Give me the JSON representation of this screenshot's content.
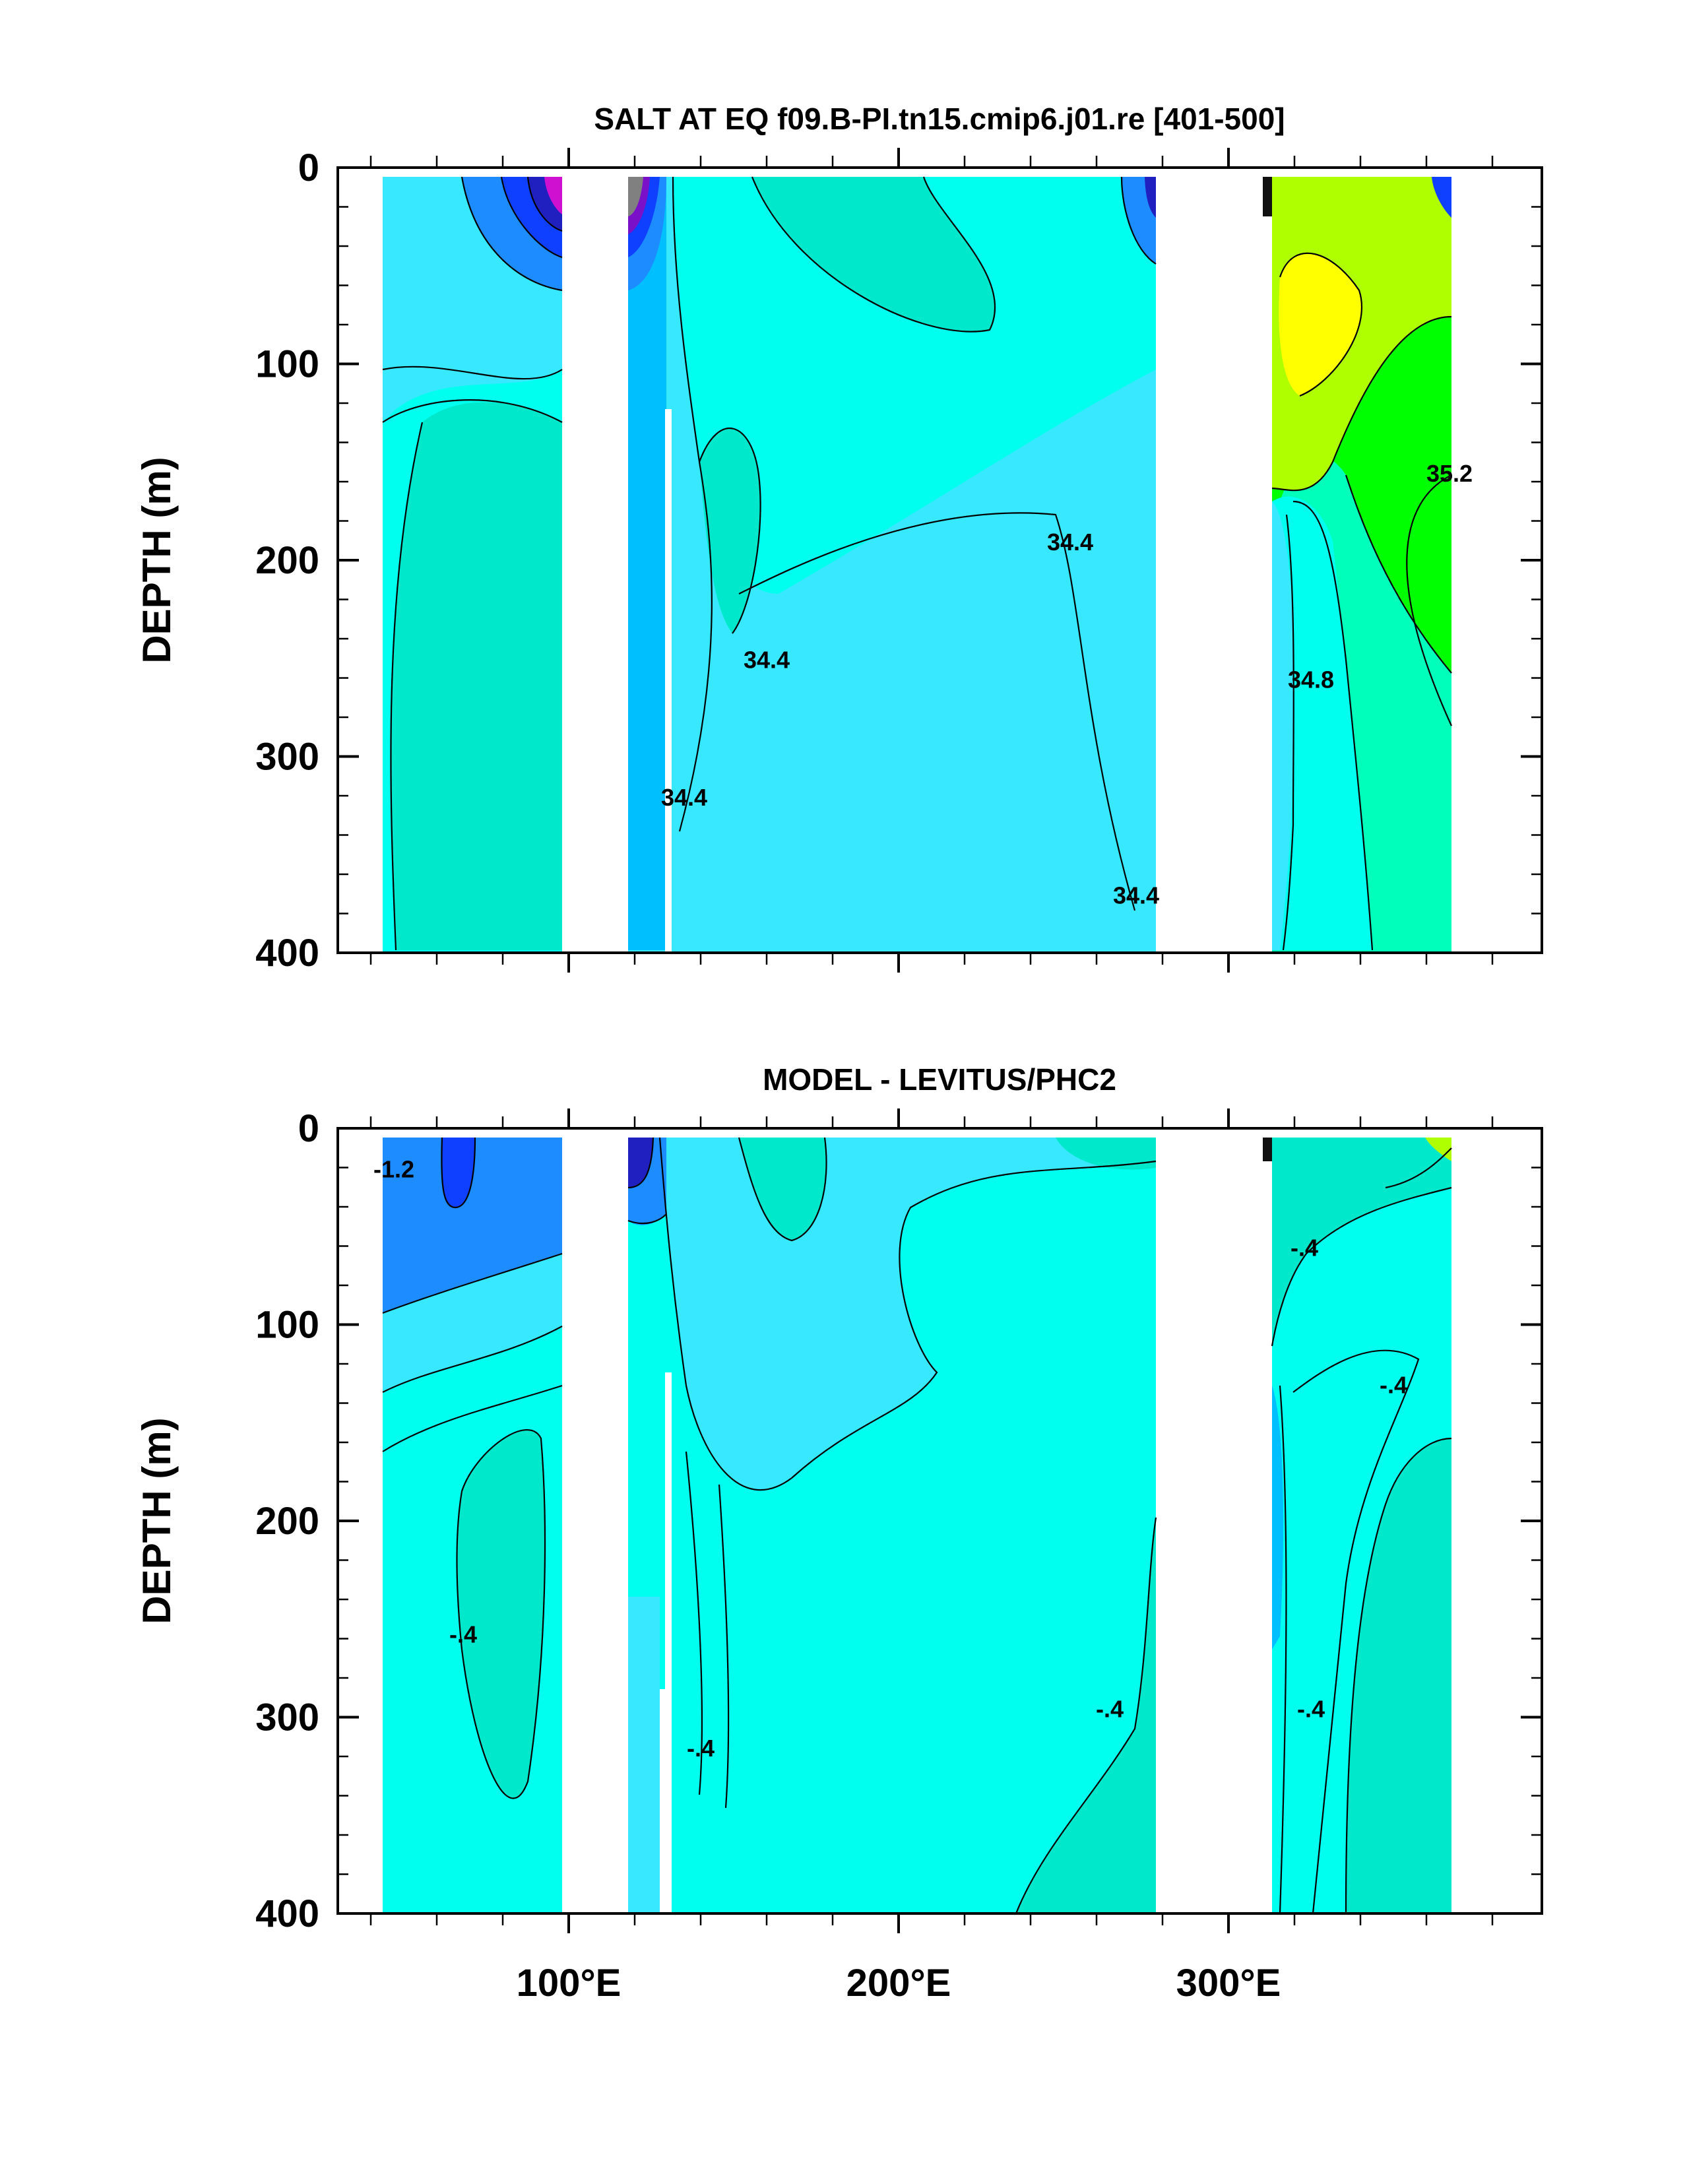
{
  "chart_data": [
    {
      "type": "contour",
      "title": "SALT AT EQ f09.B-PI.tn15.cmip6.j01.re [401-500]",
      "ylabel": "DEPTH (m)",
      "ylim": [
        400,
        0
      ],
      "xlim": [
        30,
        395
      ],
      "x_ticks": [
        100,
        200,
        300
      ],
      "x_tick_labels": [
        "100°E",
        "200°E",
        "300°E"
      ],
      "y_ticks": [
        0,
        100,
        200,
        300,
        400
      ],
      "y_tick_labels": [
        "0",
        "100",
        "200",
        "300",
        "400"
      ],
      "contour_labels": [
        {
          "text": "34.4",
          "x": 160,
          "y": 255
        },
        {
          "text": "34.4",
          "x": 252,
          "y": 195
        },
        {
          "text": "34.4",
          "x": 135,
          "y": 325
        },
        {
          "text": "34.4",
          "x": 272,
          "y": 375
        },
        {
          "text": "35.2",
          "x": 367,
          "y": 160
        },
        {
          "text": "34.8",
          "x": 325,
          "y": 265
        }
      ],
      "land_gaps": [
        [
          98,
          118
        ],
        [
          278,
          314
        ]
      ],
      "colors": [
        "#00ffee",
        "#00e8cc",
        "#38e8ff",
        "#00bfff",
        "#1c8cff",
        "#1040ff",
        "#2020c0",
        "#7a10c8",
        "#d010d0",
        "#808080",
        "#00ff00",
        "#b0ff00",
        "#ffff00",
        "#00ffbb"
      ]
    },
    {
      "type": "contour",
      "title": "MODEL - LEVITUS/PHC2",
      "ylabel": "DEPTH (m)",
      "ylim": [
        400,
        0
      ],
      "xlim": [
        30,
        395
      ],
      "x_ticks": [
        100,
        200,
        300
      ],
      "x_tick_labels": [
        "100°E",
        "200°E",
        "300°E"
      ],
      "y_ticks": [
        0,
        100,
        200,
        300,
        400
      ],
      "y_tick_labels": [
        "0",
        "100",
        "200",
        "300",
        "400"
      ],
      "contour_labels": [
        {
          "text": "-1.2",
          "x": 47,
          "y": 25
        },
        {
          "text": "-.4",
          "x": 68,
          "y": 262
        },
        {
          "text": "-.4",
          "x": 140,
          "y": 320
        },
        {
          "text": "-.4",
          "x": 264,
          "y": 300
        },
        {
          "text": "-.4",
          "x": 323,
          "y": 65
        },
        {
          "text": "-.4",
          "x": 350,
          "y": 135
        },
        {
          "text": "-.4",
          "x": 325,
          "y": 300
        }
      ],
      "land_gaps": [
        [
          98,
          118
        ],
        [
          278,
          314
        ]
      ]
    }
  ]
}
